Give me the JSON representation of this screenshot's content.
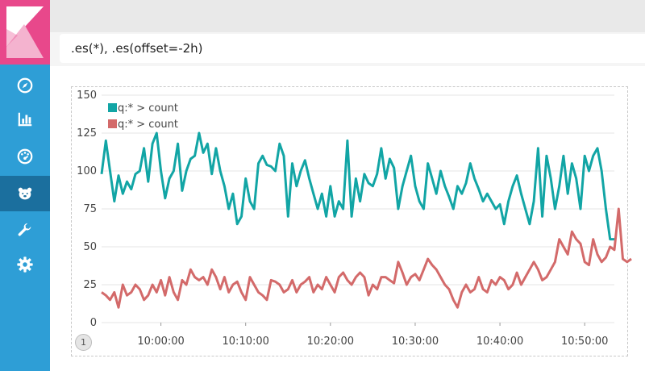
{
  "query": {
    "value": ".es(*), .es(offset=-2h)"
  },
  "sidebar": {
    "items": [
      {
        "name": "discover",
        "icon": "compass-icon"
      },
      {
        "name": "visualize",
        "icon": "bar-chart-icon"
      },
      {
        "name": "dashboard",
        "icon": "dashboard-gauge-icon"
      },
      {
        "name": "timelion",
        "icon": "bear-icon",
        "active": true
      },
      {
        "name": "dev-tools",
        "icon": "wrench-icon"
      },
      {
        "name": "management",
        "icon": "gear-icon"
      }
    ]
  },
  "panel": {
    "badge": "1"
  },
  "colors": {
    "series1": "#12a5a5",
    "series2": "#d36a6a",
    "sidebar": "#2e9ed6",
    "logo": "#e8488b"
  },
  "chart_data": {
    "type": "line",
    "x_start": "09:53:00",
    "x_interval_seconds": 30,
    "xticks": [
      "10:00:00",
      "10:10:00",
      "10:20:00",
      "10:30:00",
      "10:40:00",
      "10:50:00"
    ],
    "yticks": [
      0,
      25,
      50,
      75,
      100,
      125,
      150
    ],
    "ylim": [
      0,
      150
    ],
    "grid": true,
    "legend_position": "top-left",
    "series": [
      {
        "name": "q:* > count",
        "values": [
          98,
          120,
          100,
          80,
          97,
          85,
          93,
          88,
          98,
          100,
          115,
          93,
          118,
          125,
          100,
          82,
          95,
          100,
          118,
          87,
          100,
          108,
          110,
          125,
          112,
          118,
          98,
          115,
          100,
          90,
          75,
          85,
          65,
          70,
          95,
          80,
          75,
          105,
          110,
          104,
          103,
          100,
          118,
          110,
          70,
          105,
          90,
          100,
          107,
          95,
          85,
          75,
          85,
          70,
          90,
          70,
          80,
          75,
          120,
          70,
          95,
          80,
          98,
          92,
          90,
          98,
          115,
          95,
          108,
          102,
          75,
          90,
          100,
          110,
          90,
          80,
          75,
          105,
          95,
          85,
          100,
          90,
          83,
          75,
          90,
          85,
          92,
          105,
          95,
          88,
          80,
          85,
          80,
          75,
          78,
          65,
          80,
          90,
          97,
          85,
          75,
          65,
          80,
          115,
          70,
          110,
          95,
          75,
          90,
          110,
          85,
          105,
          95,
          75,
          110,
          100,
          110,
          115,
          100,
          75,
          55,
          55
        ],
        "color": "#12a5a5"
      },
      {
        "name": "q:* > count",
        "values": [
          20,
          18,
          15,
          20,
          10,
          25,
          18,
          20,
          25,
          22,
          15,
          18,
          25,
          20,
          28,
          18,
          30,
          20,
          15,
          28,
          25,
          35,
          30,
          28,
          30,
          25,
          35,
          30,
          22,
          30,
          20,
          25,
          27,
          20,
          15,
          30,
          25,
          20,
          18,
          15,
          28,
          27,
          25,
          20,
          22,
          28,
          20,
          25,
          27,
          30,
          20,
          25,
          22,
          30,
          25,
          20,
          30,
          33,
          28,
          25,
          30,
          33,
          30,
          18,
          25,
          22,
          30,
          30,
          28,
          26,
          40,
          33,
          25,
          30,
          32,
          28,
          35,
          42,
          38,
          35,
          30,
          25,
          22,
          15,
          10,
          20,
          25,
          20,
          22,
          30,
          22,
          20,
          28,
          25,
          30,
          28,
          22,
          25,
          33,
          25,
          30,
          35,
          40,
          35,
          28,
          30,
          35,
          40,
          55,
          50,
          45,
          60,
          55,
          52,
          40,
          38,
          55,
          45,
          40,
          43,
          50,
          48,
          75,
          42,
          40,
          42
        ],
        "color": "#d36a6a"
      }
    ]
  }
}
